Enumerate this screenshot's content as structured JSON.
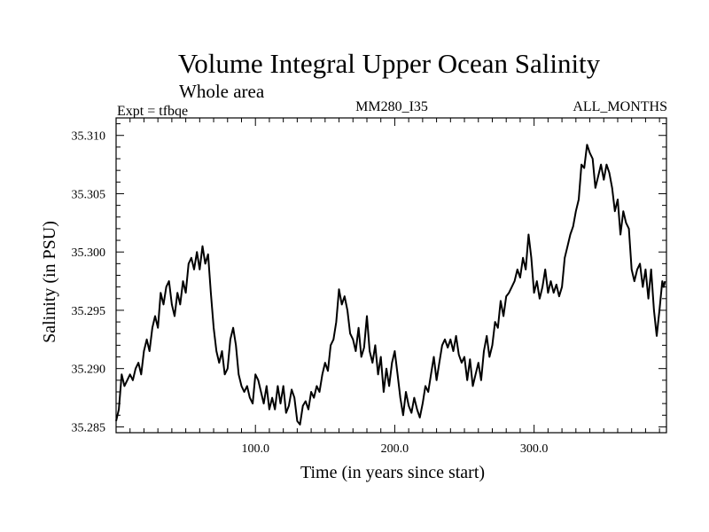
{
  "title": "Volume Integral Upper Ocean Salinity",
  "subtitle": "Whole area",
  "header": {
    "experiment": "Expt = tfbqe",
    "model": "MM280_I35",
    "months": "ALL_MONTHS"
  },
  "chart_data": {
    "type": "line",
    "title": "Volume Integral Upper Ocean Salinity",
    "subtitle": "Whole area",
    "xlabel": "Time (in years since start)",
    "ylabel": "Salinity (in PSU)",
    "xlim": [
      0,
      395
    ],
    "ylim": [
      35.2845,
      35.3115
    ],
    "x_ticks": [
      {
        "value": 100,
        "label": "100.0"
      },
      {
        "value": 200,
        "label": "200.0"
      },
      {
        "value": 300,
        "label": "300.0"
      }
    ],
    "y_ticks": [
      {
        "value": 35.285,
        "label": "35.285"
      },
      {
        "value": 35.29,
        "label": "35.290"
      },
      {
        "value": 35.295,
        "label": "35.295"
      },
      {
        "value": 35.3,
        "label": "35.300"
      },
      {
        "value": 35.305,
        "label": "35.305"
      },
      {
        "value": 35.31,
        "label": "35.310"
      }
    ],
    "grid": false,
    "series": [
      {
        "color": "#000000",
        "points": [
          [
            0,
            35.2855
          ],
          [
            2,
            35.2865
          ],
          [
            4,
            35.2895
          ],
          [
            6,
            35.2885
          ],
          [
            8,
            35.289
          ],
          [
            10,
            35.2895
          ],
          [
            12,
            35.289
          ],
          [
            14,
            35.29
          ],
          [
            16,
            35.2905
          ],
          [
            18,
            35.2895
          ],
          [
            20,
            35.2915
          ],
          [
            22,
            35.2925
          ],
          [
            24,
            35.2915
          ],
          [
            26,
            35.2935
          ],
          [
            28,
            35.2945
          ],
          [
            30,
            35.2935
          ],
          [
            32,
            35.2965
          ],
          [
            34,
            35.2955
          ],
          [
            36,
            35.297
          ],
          [
            38,
            35.2975
          ],
          [
            40,
            35.2955
          ],
          [
            42,
            35.2945
          ],
          [
            44,
            35.2965
          ],
          [
            46,
            35.2955
          ],
          [
            48,
            35.2975
          ],
          [
            50,
            35.2965
          ],
          [
            52,
            35.299
          ],
          [
            54,
            35.2995
          ],
          [
            56,
            35.2985
          ],
          [
            58,
            35.3
          ],
          [
            60,
            35.2985
          ],
          [
            62,
            35.3005
          ],
          [
            64,
            35.299
          ],
          [
            66,
            35.2998
          ],
          [
            68,
            35.2965
          ],
          [
            70,
            35.2935
          ],
          [
            72,
            35.2915
          ],
          [
            74,
            35.2905
          ],
          [
            76,
            35.2915
          ],
          [
            78,
            35.2895
          ],
          [
            80,
            35.29
          ],
          [
            82,
            35.2925
          ],
          [
            84,
            35.2935
          ],
          [
            86,
            35.292
          ],
          [
            88,
            35.2895
          ],
          [
            90,
            35.2885
          ],
          [
            92,
            35.288
          ],
          [
            94,
            35.2885
          ],
          [
            96,
            35.2875
          ],
          [
            98,
            35.287
          ],
          [
            100,
            35.2895
          ],
          [
            102,
            35.289
          ],
          [
            104,
            35.288
          ],
          [
            106,
            35.287
          ],
          [
            108,
            35.2885
          ],
          [
            110,
            35.2865
          ],
          [
            112,
            35.2875
          ],
          [
            114,
            35.2865
          ],
          [
            116,
            35.2885
          ],
          [
            118,
            35.287
          ],
          [
            120,
            35.2885
          ],
          [
            122,
            35.2862
          ],
          [
            124,
            35.2868
          ],
          [
            126,
            35.2882
          ],
          [
            128,
            35.2875
          ],
          [
            130,
            35.2855
          ],
          [
            132,
            35.2852
          ],
          [
            134,
            35.2868
          ],
          [
            136,
            35.2872
          ],
          [
            138,
            35.2865
          ],
          [
            140,
            35.288
          ],
          [
            142,
            35.2875
          ],
          [
            144,
            35.2885
          ],
          [
            146,
            35.288
          ],
          [
            148,
            35.2895
          ],
          [
            150,
            35.2905
          ],
          [
            152,
            35.2898
          ],
          [
            154,
            35.292
          ],
          [
            156,
            35.2925
          ],
          [
            158,
            35.294
          ],
          [
            160,
            35.2968
          ],
          [
            162,
            35.2955
          ],
          [
            164,
            35.2962
          ],
          [
            166,
            35.295
          ],
          [
            168,
            35.293
          ],
          [
            170,
            35.2925
          ],
          [
            172,
            35.2915
          ],
          [
            174,
            35.2935
          ],
          [
            176,
            35.291
          ],
          [
            178,
            35.2918
          ],
          [
            180,
            35.2945
          ],
          [
            182,
            35.2915
          ],
          [
            184,
            35.2905
          ],
          [
            186,
            35.292
          ],
          [
            188,
            35.2895
          ],
          [
            190,
            35.291
          ],
          [
            192,
            35.288
          ],
          [
            194,
            35.29
          ],
          [
            196,
            35.2885
          ],
          [
            198,
            35.2905
          ],
          [
            200,
            35.2915
          ],
          [
            202,
            35.2895
          ],
          [
            204,
            35.2875
          ],
          [
            206,
            35.286
          ],
          [
            208,
            35.288
          ],
          [
            210,
            35.2868
          ],
          [
            212,
            35.2862
          ],
          [
            214,
            35.2875
          ],
          [
            216,
            35.2865
          ],
          [
            218,
            35.2858
          ],
          [
            220,
            35.287
          ],
          [
            222,
            35.2885
          ],
          [
            224,
            35.288
          ],
          [
            226,
            35.2895
          ],
          [
            228,
            35.291
          ],
          [
            230,
            35.289
          ],
          [
            232,
            35.2905
          ],
          [
            234,
            35.292
          ],
          [
            236,
            35.2925
          ],
          [
            238,
            35.2918
          ],
          [
            240,
            35.2925
          ],
          [
            242,
            35.2915
          ],
          [
            244,
            35.2928
          ],
          [
            246,
            35.2912
          ],
          [
            248,
            35.2905
          ],
          [
            250,
            35.291
          ],
          [
            252,
            35.289
          ],
          [
            254,
            35.2908
          ],
          [
            256,
            35.2885
          ],
          [
            258,
            35.2895
          ],
          [
            260,
            35.2905
          ],
          [
            262,
            35.289
          ],
          [
            264,
            35.2915
          ],
          [
            266,
            35.2928
          ],
          [
            268,
            35.291
          ],
          [
            270,
            35.292
          ],
          [
            272,
            35.294
          ],
          [
            274,
            35.2935
          ],
          [
            276,
            35.2958
          ],
          [
            278,
            35.2945
          ],
          [
            280,
            35.2962
          ],
          [
            282,
            35.2965
          ],
          [
            284,
            35.297
          ],
          [
            286,
            35.2975
          ],
          [
            288,
            35.2985
          ],
          [
            290,
            35.2978
          ],
          [
            292,
            35.2995
          ],
          [
            294,
            35.2985
          ],
          [
            296,
            35.3015
          ],
          [
            298,
            35.2995
          ],
          [
            300,
            35.2965
          ],
          [
            302,
            35.2975
          ],
          [
            304,
            35.296
          ],
          [
            306,
            35.297
          ],
          [
            308,
            35.2985
          ],
          [
            310,
            35.2965
          ],
          [
            312,
            35.2975
          ],
          [
            314,
            35.2965
          ],
          [
            316,
            35.2972
          ],
          [
            318,
            35.2962
          ],
          [
            320,
            35.297
          ],
          [
            322,
            35.2995
          ],
          [
            324,
            35.3005
          ],
          [
            326,
            35.3015
          ],
          [
            328,
            35.3022
          ],
          [
            330,
            35.3035
          ],
          [
            332,
            35.3045
          ],
          [
            334,
            35.3075
          ],
          [
            336,
            35.3072
          ],
          [
            338,
            35.3092
          ],
          [
            340,
            35.3085
          ],
          [
            342,
            35.308
          ],
          [
            344,
            35.3055
          ],
          [
            346,
            35.3065
          ],
          [
            348,
            35.3075
          ],
          [
            350,
            35.3062
          ],
          [
            352,
            35.3075
          ],
          [
            354,
            35.3068
          ],
          [
            356,
            35.3055
          ],
          [
            358,
            35.3035
          ],
          [
            360,
            35.3045
          ],
          [
            362,
            35.3015
          ],
          [
            364,
            35.3035
          ],
          [
            366,
            35.3025
          ],
          [
            368,
            35.302
          ],
          [
            370,
            35.2985
          ],
          [
            372,
            35.2975
          ],
          [
            374,
            35.2985
          ],
          [
            376,
            35.299
          ],
          [
            378,
            35.297
          ],
          [
            380,
            35.2985
          ],
          [
            382,
            35.296
          ],
          [
            384,
            35.2985
          ],
          [
            386,
            35.295
          ],
          [
            388,
            35.2928
          ],
          [
            390,
            35.295
          ],
          [
            392,
            35.2975
          ],
          [
            393,
            35.297
          ],
          [
            394,
            35.2975
          ]
        ]
      }
    ]
  }
}
